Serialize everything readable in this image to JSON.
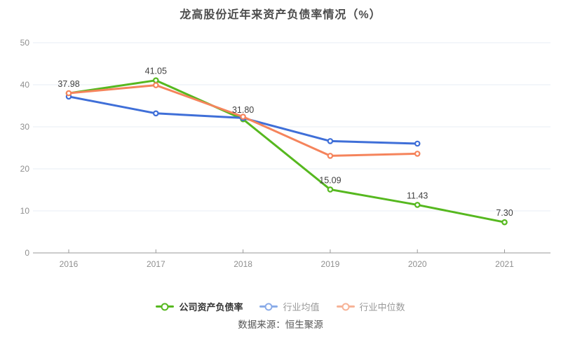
{
  "title": "龙高股份近年来资产负债率情况（%）",
  "source": "数据来源：恒生聚源",
  "colors": {
    "company": "#56b81f",
    "industry_mean": "#3f6fd8",
    "industry_median": "#f5845c",
    "grid": "#e7edf4",
    "axis": "#999999",
    "axis_label": "#8f8f8f",
    "value_label": "#404040"
  },
  "chart_data": {
    "type": "line",
    "title": "龙高股份近年来资产负债率情况（%）",
    "categories": [
      "2016",
      "2017",
      "2018",
      "2019",
      "2020",
      "2021"
    ],
    "series": [
      {
        "key": "company-ratio",
        "name": "公司资产负债率",
        "color": "#56b81f",
        "legend_color": "#56b81f",
        "values": [
          37.98,
          41.05,
          31.8,
          15.09,
          11.43,
          7.3
        ],
        "point_labels": [
          "37.98",
          "41.05",
          "31.80",
          "15.09",
          "11.43",
          "7.30"
        ]
      },
      {
        "key": "industry-mean",
        "name": "行业均值",
        "color": "#3f6fd8",
        "legend_color": "#8aabe8",
        "values": [
          37.2,
          33.2,
          32.1,
          26.6,
          26.0,
          null
        ],
        "point_labels": null
      },
      {
        "key": "industry-median",
        "name": "行业中位数",
        "color": "#f5845c",
        "legend_color": "#f7b397",
        "values": [
          38.0,
          39.9,
          32.4,
          23.1,
          23.6,
          null
        ],
        "point_labels": null
      }
    ],
    "ylim": [
      0,
      50
    ],
    "yticks": [
      0,
      10,
      20,
      30,
      40,
      50
    ],
    "grid": true,
    "legend_position": "bottom"
  }
}
